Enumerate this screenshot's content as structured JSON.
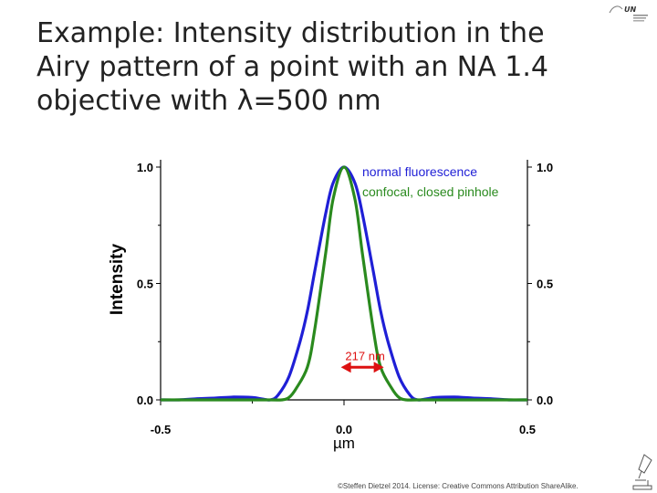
{
  "slide": {
    "title_lines": [
      "Example: Intensity distribution in the",
      "Airy pattern of a point with an NA 1.4",
      "objective with λ=500 nm"
    ],
    "footer": "©Steffen Dietzel 2014. License: Creative  Commons Attribution ShareAlike.",
    "logo_icon": "institution-logo-icon",
    "corner_icon": "microscope-icon"
  },
  "chart_data": {
    "type": "line",
    "title": "",
    "xlabel": "µm",
    "ylabel": "Intensity",
    "xlim": [
      -0.5,
      0.5
    ],
    "ylim": [
      0,
      1
    ],
    "x_ticks": [
      "-0.5",
      "0.0",
      "0.5"
    ],
    "y_ticks": [
      "0.0",
      "0.5",
      "1.0"
    ],
    "y2_ticks": [
      "0.0",
      "0.5",
      "1.0"
    ],
    "grid": false,
    "legend_position": "top-right",
    "series": [
      {
        "name": "normal fluorescence",
        "color": "#1f1fd6",
        "x": [
          -0.5,
          -0.45,
          -0.4,
          -0.35,
          -0.3,
          -0.25,
          -0.22,
          -0.2,
          -0.18,
          -0.15,
          -0.12,
          -0.1,
          -0.08,
          -0.05,
          -0.03,
          0.0,
          0.03,
          0.05,
          0.08,
          0.1,
          0.12,
          0.15,
          0.18,
          0.2,
          0.22,
          0.25,
          0.3,
          0.35,
          0.4,
          0.45,
          0.5
        ],
        "y": [
          0.0,
          0.0,
          0.005,
          0.008,
          0.012,
          0.01,
          0.003,
          0.0,
          0.02,
          0.1,
          0.25,
          0.38,
          0.55,
          0.8,
          0.93,
          1.0,
          0.93,
          0.8,
          0.55,
          0.38,
          0.25,
          0.1,
          0.02,
          0.0,
          0.003,
          0.01,
          0.012,
          0.008,
          0.005,
          0.0,
          0.0
        ]
      },
      {
        "name": "confocal, closed pinhole",
        "color": "#2a8a1e",
        "x": [
          -0.5,
          -0.4,
          -0.3,
          -0.2,
          -0.17,
          -0.15,
          -0.13,
          -0.1,
          -0.08,
          -0.05,
          -0.03,
          0.0,
          0.03,
          0.05,
          0.08,
          0.1,
          0.13,
          0.15,
          0.17,
          0.2,
          0.3,
          0.4,
          0.5
        ],
        "y": [
          0.0,
          0.0,
          0.0,
          0.0,
          0.0,
          0.01,
          0.05,
          0.14,
          0.3,
          0.63,
          0.86,
          1.0,
          0.86,
          0.63,
          0.3,
          0.14,
          0.05,
          0.01,
          0.0,
          0.0,
          0.0,
          0.0,
          0.0
        ]
      }
    ],
    "annotation": {
      "label": "217 nm",
      "color": "#dd1111",
      "x_start": -0.0085,
      "x_end": 0.1085,
      "y": 0.14
    }
  }
}
